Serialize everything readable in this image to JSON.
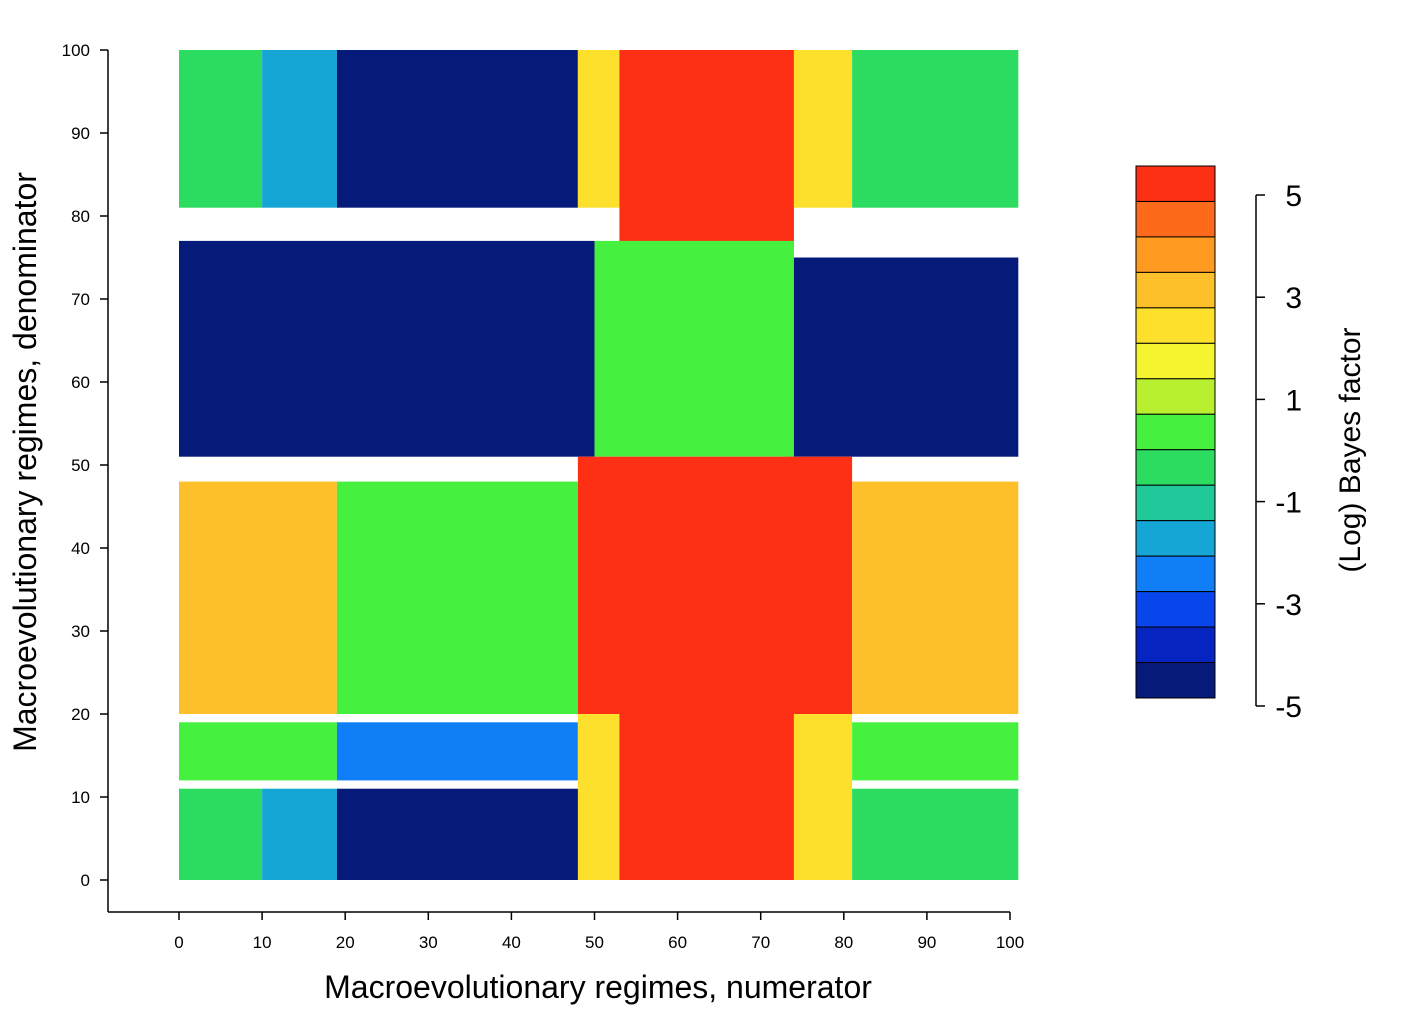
{
  "chart_data": {
    "type": "heatmap",
    "title": "",
    "xlabel": "Macroevolutionary regimes, numerator",
    "ylabel": "Macroevolutionary regimes, denominator",
    "xlim": [
      0,
      100
    ],
    "ylim": [
      0,
      100
    ],
    "xticks": [
      "0",
      "10",
      "20",
      "30",
      "40",
      "50",
      "60",
      "70",
      "80",
      "90",
      "100"
    ],
    "yticks": [
      "0",
      "10",
      "20",
      "30",
      "40",
      "50",
      "60",
      "70",
      "80",
      "90",
      "100"
    ],
    "cells_approx": [
      {
        "x": [
          0,
          10
        ],
        "y": [
          81,
          100
        ],
        "value": -1
      },
      {
        "x": [
          10,
          19
        ],
        "y": [
          81,
          100
        ],
        "value": -2
      },
      {
        "x": [
          19,
          48
        ],
        "y": [
          81,
          100
        ],
        "value": -5
      },
      {
        "x": [
          48,
          53
        ],
        "y": [
          81,
          100
        ],
        "value": 2
      },
      {
        "x": [
          53,
          74
        ],
        "y": [
          76,
          100
        ],
        "value": 5
      },
      {
        "x": [
          74,
          81
        ],
        "y": [
          81,
          100
        ],
        "value": 2
      },
      {
        "x": [
          81,
          101
        ],
        "y": [
          81,
          100
        ],
        "value": -1
      },
      {
        "x": [
          0,
          50
        ],
        "y": [
          51,
          77
        ],
        "value": -5
      },
      {
        "x": [
          73,
          101
        ],
        "y": [
          51,
          75
        ],
        "value": -5
      },
      {
        "x": [
          50,
          74
        ],
        "y": [
          51,
          77
        ],
        "value": 0
      },
      {
        "x": [
          0,
          19
        ],
        "y": [
          20,
          48
        ],
        "value": 3
      },
      {
        "x": [
          19,
          48
        ],
        "y": [
          20,
          48
        ],
        "value": 0
      },
      {
        "x": [
          48,
          81
        ],
        "y": [
          20,
          51
        ],
        "value": 5
      },
      {
        "x": [
          81,
          101
        ],
        "y": [
          20,
          48
        ],
        "value": 3
      },
      {
        "x": [
          0,
          19
        ],
        "y": [
          12,
          19
        ],
        "value": 0
      },
      {
        "x": [
          19,
          48
        ],
        "y": [
          12,
          19
        ],
        "value": -3
      },
      {
        "x": [
          48,
          53
        ],
        "y": [
          0,
          20
        ],
        "value": 2
      },
      {
        "x": [
          53,
          74
        ],
        "y": [
          0,
          20
        ],
        "value": 5
      },
      {
        "x": [
          74,
          81
        ],
        "y": [
          0,
          20
        ],
        "value": 2
      },
      {
        "x": [
          81,
          101
        ],
        "y": [
          12,
          19
        ],
        "value": 0
      },
      {
        "x": [
          0,
          10
        ],
        "y": [
          0,
          11
        ],
        "value": -1
      },
      {
        "x": [
          10,
          19
        ],
        "y": [
          0,
          11
        ],
        "value": -2
      },
      {
        "x": [
          19,
          48
        ],
        "y": [
          0,
          11
        ],
        "value": -5
      },
      {
        "x": [
          81,
          101
        ],
        "y": [
          0,
          11
        ],
        "value": -1
      }
    ],
    "colorbar": {
      "label": "(Log) Bayes factor",
      "ticks": [
        "5",
        "3",
        "1",
        "-1",
        "-3",
        "-5"
      ],
      "range": [
        -5,
        5
      ],
      "colors_top_to_bottom": [
        "#fd3015",
        "#fd6a1c",
        "#fd9a1f",
        "#fdc02a",
        "#fde02c",
        "#f4f52e",
        "#b8f02f",
        "#45f03e",
        "#2bdc60",
        "#21c89a",
        "#16a6d6",
        "#0f7ef7",
        "#0845ea",
        "#0624c0",
        "#061a7a"
      ]
    }
  }
}
